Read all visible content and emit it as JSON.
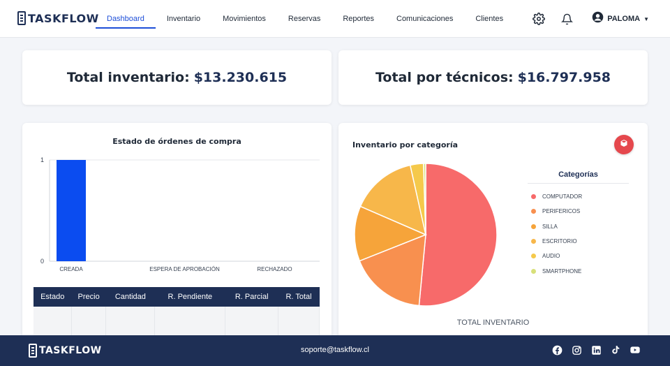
{
  "brand": {
    "name": "TASKFLOW"
  },
  "nav": {
    "items": [
      {
        "label": "Dashboard",
        "active": true
      },
      {
        "label": "Inventario"
      },
      {
        "label": "Movimientos"
      },
      {
        "label": "Reservas"
      },
      {
        "label": "Reportes"
      },
      {
        "label": "Comunicaciones"
      },
      {
        "label": "Clientes"
      }
    ],
    "icons": [
      "gear-icon",
      "bell-icon",
      "user-circle-icon"
    ],
    "user_name": "PALOMA"
  },
  "totals": {
    "inventory_label": "Total inventario:",
    "inventory_value": "$13.230.615",
    "technicians_label": "Total por técnicos:",
    "technicians_value": "$16.797.958"
  },
  "orders": {
    "title": "Estado de órdenes de compra",
    "table_headers": [
      "Estado",
      "Precio",
      "Cantidad",
      "R. Pendiente",
      "R. Parcial",
      "R. Total"
    ]
  },
  "inventory": {
    "title": "Inventario por categoría",
    "legend_title": "Categorías",
    "caption": "TOTAL INVENTARIO"
  },
  "colors": {
    "primary": "#1e2f55",
    "accent": "#1d4ed8",
    "bar": "#0b4cf0",
    "export_button": "#e5484d"
  },
  "chart_data": [
    {
      "type": "bar",
      "title": "Estado de órdenes de compra",
      "categories": [
        "CREADA",
        "ESPERA DE APROBACIÓN",
        "RECHAZADO"
      ],
      "values": [
        1,
        0,
        0
      ],
      "ylim": [
        0,
        1
      ],
      "yticks": [
        0,
        1
      ],
      "grid": true
    },
    {
      "type": "pie",
      "title": "Inventario por categoría",
      "labels": [
        "COMPUTADOR",
        "PERIFERICOS",
        "SILLA",
        "ESCRITORIO",
        "AUDIO",
        "SMARTPHONE"
      ],
      "values": [
        51.5,
        17.5,
        12.5,
        15,
        3,
        0.5
      ],
      "colors": [
        "#f76a6a",
        "#f8904f",
        "#f6a43a",
        "#f7b74a",
        "#f5c94b",
        "#d8e07a"
      ],
      "legend": "right"
    }
  ],
  "footer": {
    "brand": "TASKFLOW",
    "email": "soporte@taskflow.cl",
    "socials": [
      "facebook-icon",
      "instagram-icon",
      "linkedin-icon",
      "tiktok-icon",
      "youtube-icon"
    ]
  }
}
